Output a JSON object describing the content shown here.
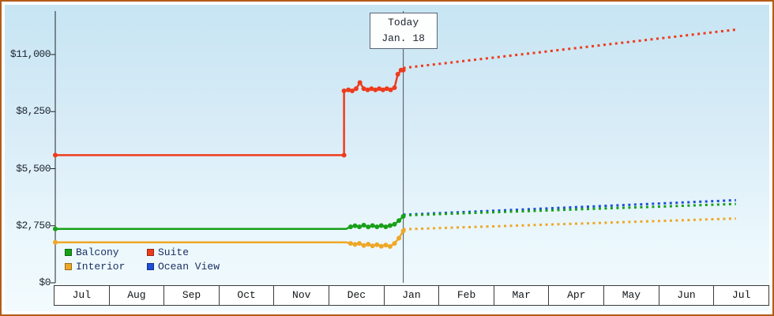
{
  "chart_data": {
    "type": "line",
    "y_axis": {
      "max": 11000,
      "ticks": [
        {
          "label": "$0",
          "value": 0
        },
        {
          "label": "$2,750",
          "value": 2750
        },
        {
          "label": "$5,500",
          "value": 5500
        },
        {
          "label": "$8,250",
          "value": 8250
        },
        {
          "label": "$11,000",
          "value": 11000
        }
      ]
    },
    "x_axis": {
      "months": [
        "Jul",
        "Aug",
        "Sep",
        "Oct",
        "Nov",
        "Dec",
        "Jan",
        "Feb",
        "Mar",
        "Apr",
        "May",
        "Jun",
        "Jul"
      ]
    },
    "today": {
      "title": "Today",
      "date": "Jan. 18",
      "x_months": 6.34
    },
    "series": [
      {
        "name": "Balcony",
        "color": "#18a018",
        "history": [
          [
            0,
            2600
          ],
          [
            5.3,
            2600
          ],
          [
            5.38,
            2700
          ],
          [
            5.46,
            2750
          ],
          [
            5.54,
            2700
          ],
          [
            5.62,
            2780
          ],
          [
            5.7,
            2690
          ],
          [
            5.78,
            2760
          ],
          [
            5.86,
            2700
          ],
          [
            5.94,
            2760
          ],
          [
            6.02,
            2700
          ],
          [
            6.1,
            2760
          ],
          [
            6.18,
            2820
          ],
          [
            6.26,
            3000
          ],
          [
            6.34,
            3200
          ]
        ],
        "markers": [
          [
            0,
            2600
          ],
          [
            5.38,
            2700
          ],
          [
            5.46,
            2750
          ],
          [
            5.54,
            2700
          ],
          [
            5.62,
            2780
          ],
          [
            5.7,
            2690
          ],
          [
            5.78,
            2760
          ],
          [
            5.86,
            2700
          ],
          [
            5.94,
            2760
          ],
          [
            6.02,
            2700
          ],
          [
            6.1,
            2760
          ],
          [
            6.18,
            2820
          ],
          [
            6.26,
            3000
          ],
          [
            6.34,
            3200
          ]
        ],
        "forecast": [
          [
            6.34,
            3250
          ],
          [
            12.4,
            3800
          ]
        ]
      },
      {
        "name": "Suite",
        "color": "#ee3b1d",
        "history": [
          [
            0,
            6150
          ],
          [
            5.26,
            6150
          ],
          [
            5.26,
            9250
          ],
          [
            5.34,
            9300
          ],
          [
            5.41,
            9250
          ],
          [
            5.48,
            9350
          ],
          [
            5.55,
            9650
          ],
          [
            5.62,
            9350
          ],
          [
            5.69,
            9300
          ],
          [
            5.76,
            9350
          ],
          [
            5.83,
            9300
          ],
          [
            5.9,
            9350
          ],
          [
            5.97,
            9300
          ],
          [
            6.04,
            9350
          ],
          [
            6.11,
            9300
          ],
          [
            6.18,
            9400
          ],
          [
            6.24,
            10050
          ],
          [
            6.3,
            10250
          ],
          [
            6.34,
            10250
          ]
        ],
        "markers": [
          [
            0,
            6150
          ],
          [
            5.26,
            6150
          ],
          [
            5.26,
            9250
          ],
          [
            5.34,
            9300
          ],
          [
            5.41,
            9250
          ],
          [
            5.48,
            9350
          ],
          [
            5.55,
            9650
          ],
          [
            5.62,
            9350
          ],
          [
            5.69,
            9300
          ],
          [
            5.76,
            9350
          ],
          [
            5.83,
            9300
          ],
          [
            5.9,
            9350
          ],
          [
            5.97,
            9300
          ],
          [
            6.04,
            9350
          ],
          [
            6.11,
            9300
          ],
          [
            6.18,
            9400
          ],
          [
            6.24,
            10050
          ],
          [
            6.3,
            10250
          ],
          [
            6.34,
            10250
          ]
        ],
        "forecast": [
          [
            6.34,
            10350
          ],
          [
            12.4,
            12200
          ]
        ]
      },
      {
        "name": "Interior",
        "color": "#efa726",
        "history": [
          [
            0,
            1950
          ],
          [
            5.3,
            1950
          ],
          [
            5.38,
            1900
          ],
          [
            5.46,
            1850
          ],
          [
            5.54,
            1900
          ],
          [
            5.62,
            1800
          ],
          [
            5.7,
            1860
          ],
          [
            5.78,
            1780
          ],
          [
            5.86,
            1840
          ],
          [
            5.94,
            1760
          ],
          [
            6.02,
            1820
          ],
          [
            6.1,
            1750
          ],
          [
            6.18,
            1900
          ],
          [
            6.26,
            2150
          ],
          [
            6.34,
            2500
          ]
        ],
        "markers": [
          [
            0,
            1950
          ],
          [
            5.38,
            1900
          ],
          [
            5.46,
            1850
          ],
          [
            5.54,
            1900
          ],
          [
            5.62,
            1800
          ],
          [
            5.7,
            1860
          ],
          [
            5.78,
            1780
          ],
          [
            5.86,
            1840
          ],
          [
            5.94,
            1760
          ],
          [
            6.02,
            1820
          ],
          [
            6.1,
            1750
          ],
          [
            6.18,
            1900
          ],
          [
            6.26,
            2150
          ],
          [
            6.34,
            2500
          ]
        ],
        "forecast": [
          [
            6.34,
            2580
          ],
          [
            12.4,
            3100
          ]
        ]
      },
      {
        "name": "Ocean View",
        "color": "#1d4fd7",
        "history": [],
        "markers": [],
        "forecast": [
          [
            6.34,
            3280
          ],
          [
            12.4,
            3980
          ]
        ]
      }
    ]
  }
}
